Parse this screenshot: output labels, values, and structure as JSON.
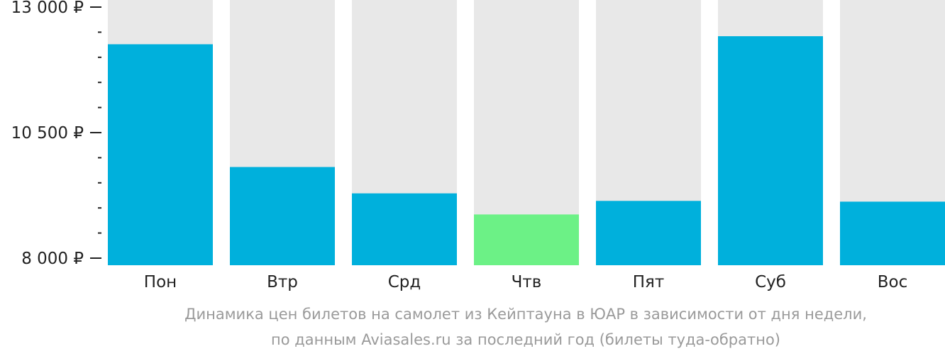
{
  "chart_data": {
    "type": "bar",
    "categories": [
      "Пон",
      "Втр",
      "Срд",
      "Чтв",
      "Пят",
      "Суб",
      "Вос"
    ],
    "values": [
      12260,
      9815,
      9290,
      8870,
      9140,
      12420,
      9125
    ],
    "ylim": [
      8000,
      13000
    ],
    "yticks": [
      {
        "value": 8000,
        "label": "8 000 ₽"
      },
      {
        "value": 10500,
        "label": "10 500 ₽"
      },
      {
        "value": 13000,
        "label": "13 000 ₽"
      }
    ],
    "minor_tick_step": 500,
    "highlight_index": 3,
    "colors": {
      "bar": "#00b0dc",
      "highlight": "#6cf186",
      "background_bar": "#e8e8e8",
      "axis": "#222222"
    },
    "caption_line1": "Динамика цен билетов на самолет из Кейптауна в ЮАР в зависимости от дня недели,",
    "caption_line2": "по данным Aviasales.ru за последний год (билеты туда-обратно)"
  }
}
